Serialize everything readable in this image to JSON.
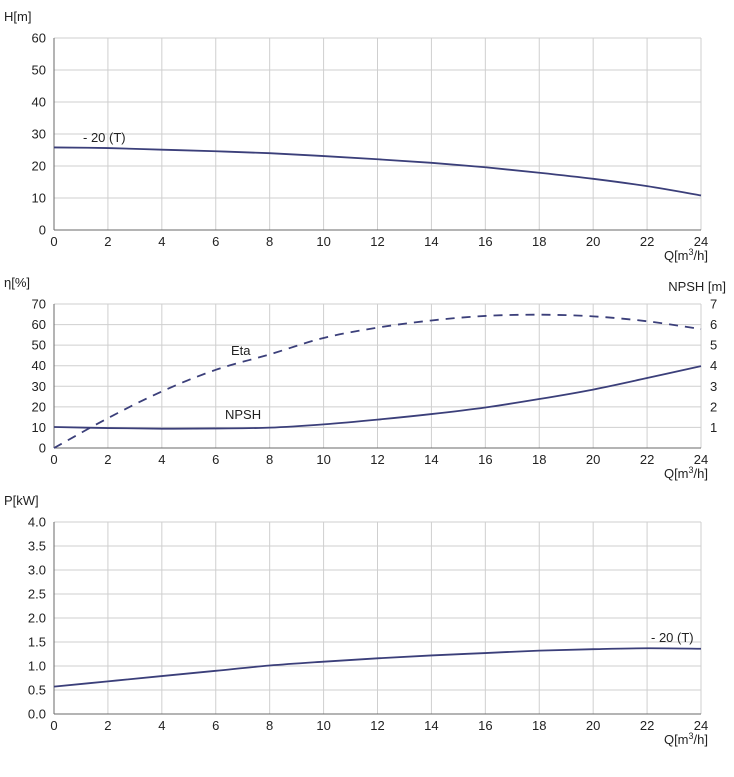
{
  "chart_data": [
    {
      "type": "line",
      "xlabel": "Q[m³/h]",
      "ylabel": "H[m]",
      "xlim": [
        0,
        24
      ],
      "ylim": [
        0,
        60
      ],
      "xticks": [
        0,
        2,
        4,
        6,
        8,
        10,
        12,
        14,
        16,
        18,
        20,
        22,
        24
      ],
      "yticks": [
        0,
        10,
        20,
        30,
        40,
        50,
        60
      ],
      "grid": true,
      "series": [
        {
          "name": "- 20 (T)",
          "style": "solid",
          "x": [
            0,
            2,
            4,
            6,
            8,
            10,
            12,
            14,
            16,
            18,
            20,
            22,
            24
          ],
          "values": [
            25.8,
            25.6,
            25.1,
            24.6,
            24.0,
            23.1,
            22.1,
            21.0,
            19.6,
            17.9,
            16.0,
            13.7,
            10.8
          ]
        }
      ]
    },
    {
      "type": "line",
      "xlabel": "Q[m³/h]",
      "ylabel": "η[%]",
      "ylabel_right": "NPSH [m]",
      "xlim": [
        0,
        24
      ],
      "ylim": [
        0,
        70
      ],
      "ylim_right": [
        0,
        7
      ],
      "xticks": [
        0,
        2,
        4,
        6,
        8,
        10,
        12,
        14,
        16,
        18,
        20,
        22,
        24
      ],
      "yticks": [
        0,
        10,
        20,
        30,
        40,
        50,
        60,
        70
      ],
      "yticks_right": [
        1,
        2,
        3,
        4,
        5,
        6,
        7
      ],
      "grid": true,
      "series": [
        {
          "name": "Eta",
          "style": "dashed",
          "axis": "left",
          "x": [
            0,
            2,
            4,
            6,
            8,
            10,
            12,
            14,
            16,
            18,
            20,
            22,
            24
          ],
          "values": [
            0,
            14.5,
            27.5,
            38,
            45.5,
            53.5,
            58.5,
            62,
            64.2,
            64.8,
            64.0,
            61.6,
            57.8
          ]
        },
        {
          "name": "NPSH",
          "style": "solid",
          "axis": "right",
          "x": [
            0,
            2,
            4,
            6,
            8,
            10,
            12,
            14,
            16,
            18,
            20,
            22,
            24
          ],
          "values": [
            1.02,
            0.97,
            0.94,
            0.95,
            0.99,
            1.15,
            1.38,
            1.65,
            1.97,
            2.38,
            2.84,
            3.4,
            3.98
          ]
        }
      ]
    },
    {
      "type": "line",
      "xlabel": "Q[m³/h]",
      "ylabel": "P[kW]",
      "xlim": [
        0,
        24
      ],
      "ylim": [
        0,
        4
      ],
      "xticks": [
        0,
        2,
        4,
        6,
        8,
        10,
        12,
        14,
        16,
        18,
        20,
        22,
        24
      ],
      "yticks": [
        "0.0",
        "0.5",
        "1.0",
        "1.5",
        "2.0",
        "2.5",
        "3.0",
        "3.5",
        "4.0"
      ],
      "grid": true,
      "series": [
        {
          "name": "- 20 (T)",
          "style": "solid",
          "x": [
            0,
            2,
            4,
            6,
            8,
            10,
            12,
            14,
            16,
            18,
            20,
            22,
            24
          ],
          "values": [
            0.57,
            0.68,
            0.79,
            0.9,
            1.01,
            1.09,
            1.16,
            1.22,
            1.27,
            1.32,
            1.35,
            1.37,
            1.36
          ]
        }
      ]
    }
  ],
  "colors": {
    "curve": "#3b3f7a",
    "grid": "#cfcfcf",
    "axis": "#6a6a6a",
    "text": "#222222"
  }
}
